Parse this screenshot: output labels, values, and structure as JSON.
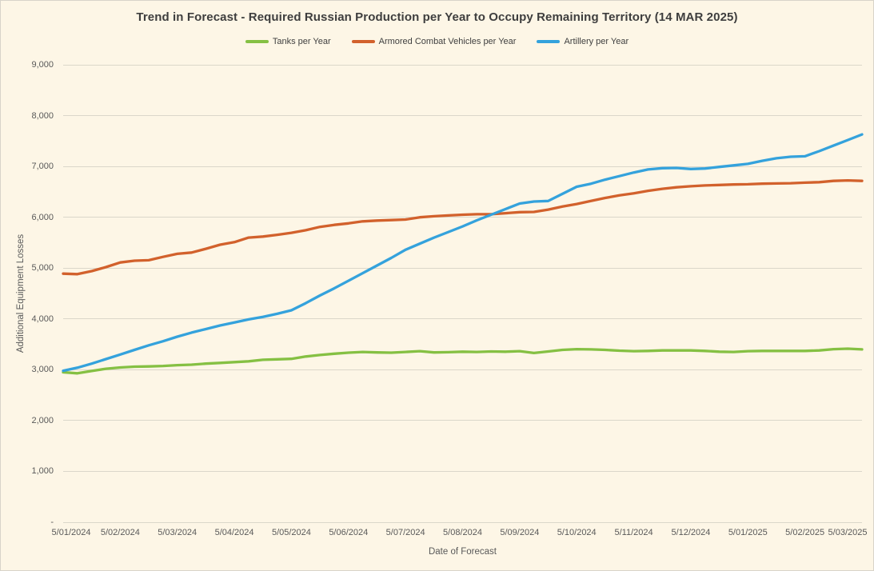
{
  "title": "Trend in Forecast - Required Russian Production per Year to Occupy Remaining Territory (14 MAR 2025)",
  "colors": {
    "background": "#fdf6e6",
    "gridline": "#dbd7ca",
    "tanks": "#85c043",
    "acv": "#d2612c",
    "artillery": "#34a2dc",
    "title_text": "#3e3e3e",
    "axis_text": "#595959"
  },
  "chart_data": {
    "type": "line",
    "title": "Trend in Forecast - Required Russian Production per Year to Occupy Remaining Territory (14 MAR 2025)",
    "xlabel": "Date of Forecast",
    "ylabel": "Additional Equipment Losses",
    "ylim": [
      0,
      9000
    ],
    "y_tick_step": 1000,
    "y_tick_labels": [
      "-",
      "1,000",
      "2,000",
      "3,000",
      "4,000",
      "5,000",
      "6,000",
      "7,000",
      "8,000",
      "9,000"
    ],
    "x_tick_labels": [
      "5/01/2024",
      "5/02/2024",
      "5/03/2024",
      "5/04/2024",
      "5/05/2024",
      "5/06/2024",
      "5/07/2024",
      "5/08/2024",
      "5/09/2024",
      "5/10/2024",
      "5/11/2024",
      "5/12/2024",
      "5/01/2025",
      "5/02/2025",
      "5/03/2025"
    ],
    "grid": true,
    "legend_position": "top",
    "points_per_month": 4,
    "note": "values estimated from pixels; 4 points per month (weekly forecasts) from 5/01/2024 to 5/03/2025",
    "series": [
      {
        "name": "Tanks per Year",
        "color": "#85c043",
        "values": [
          2950,
          2930,
          2975,
          3020,
          3045,
          3060,
          3065,
          3075,
          3090,
          3100,
          3120,
          3135,
          3150,
          3165,
          3195,
          3205,
          3215,
          3260,
          3290,
          3315,
          3335,
          3350,
          3340,
          3335,
          3350,
          3365,
          3340,
          3345,
          3355,
          3350,
          3360,
          3355,
          3365,
          3330,
          3360,
          3390,
          3405,
          3400,
          3390,
          3375,
          3365,
          3370,
          3380,
          3380,
          3380,
          3370,
          3355,
          3350,
          3365,
          3370,
          3370,
          3370,
          3370,
          3380,
          3405,
          3415,
          3400
        ]
      },
      {
        "name": "Armored Combat Vehicles per Year",
        "color": "#d2612c",
        "values": [
          4890,
          4880,
          4940,
          5020,
          5110,
          5145,
          5155,
          5220,
          5280,
          5305,
          5380,
          5460,
          5510,
          5600,
          5620,
          5655,
          5695,
          5745,
          5810,
          5850,
          5880,
          5920,
          5935,
          5945,
          5955,
          6000,
          6020,
          6035,
          6050,
          6060,
          6060,
          6080,
          6100,
          6105,
          6150,
          6210,
          6260,
          6320,
          6380,
          6430,
          6470,
          6520,
          6560,
          6590,
          6610,
          6625,
          6635,
          6645,
          6650,
          6660,
          6665,
          6670,
          6680,
          6690,
          6715,
          6725,
          6715
        ]
      },
      {
        "name": "Artillery per Year",
        "color": "#34a2dc",
        "values": [
          2980,
          3040,
          3120,
          3210,
          3300,
          3390,
          3480,
          3560,
          3650,
          3730,
          3800,
          3870,
          3930,
          3990,
          4040,
          4100,
          4170,
          4310,
          4460,
          4600,
          4750,
          4900,
          5050,
          5200,
          5360,
          5480,
          5600,
          5710,
          5820,
          5940,
          6050,
          6160,
          6270,
          6310,
          6320,
          6460,
          6600,
          6660,
          6740,
          6810,
          6880,
          6940,
          6965,
          6970,
          6950,
          6960,
          6990,
          7020,
          7050,
          7110,
          7160,
          7190,
          7200,
          7300,
          7410,
          7520,
          7630
        ]
      }
    ]
  }
}
